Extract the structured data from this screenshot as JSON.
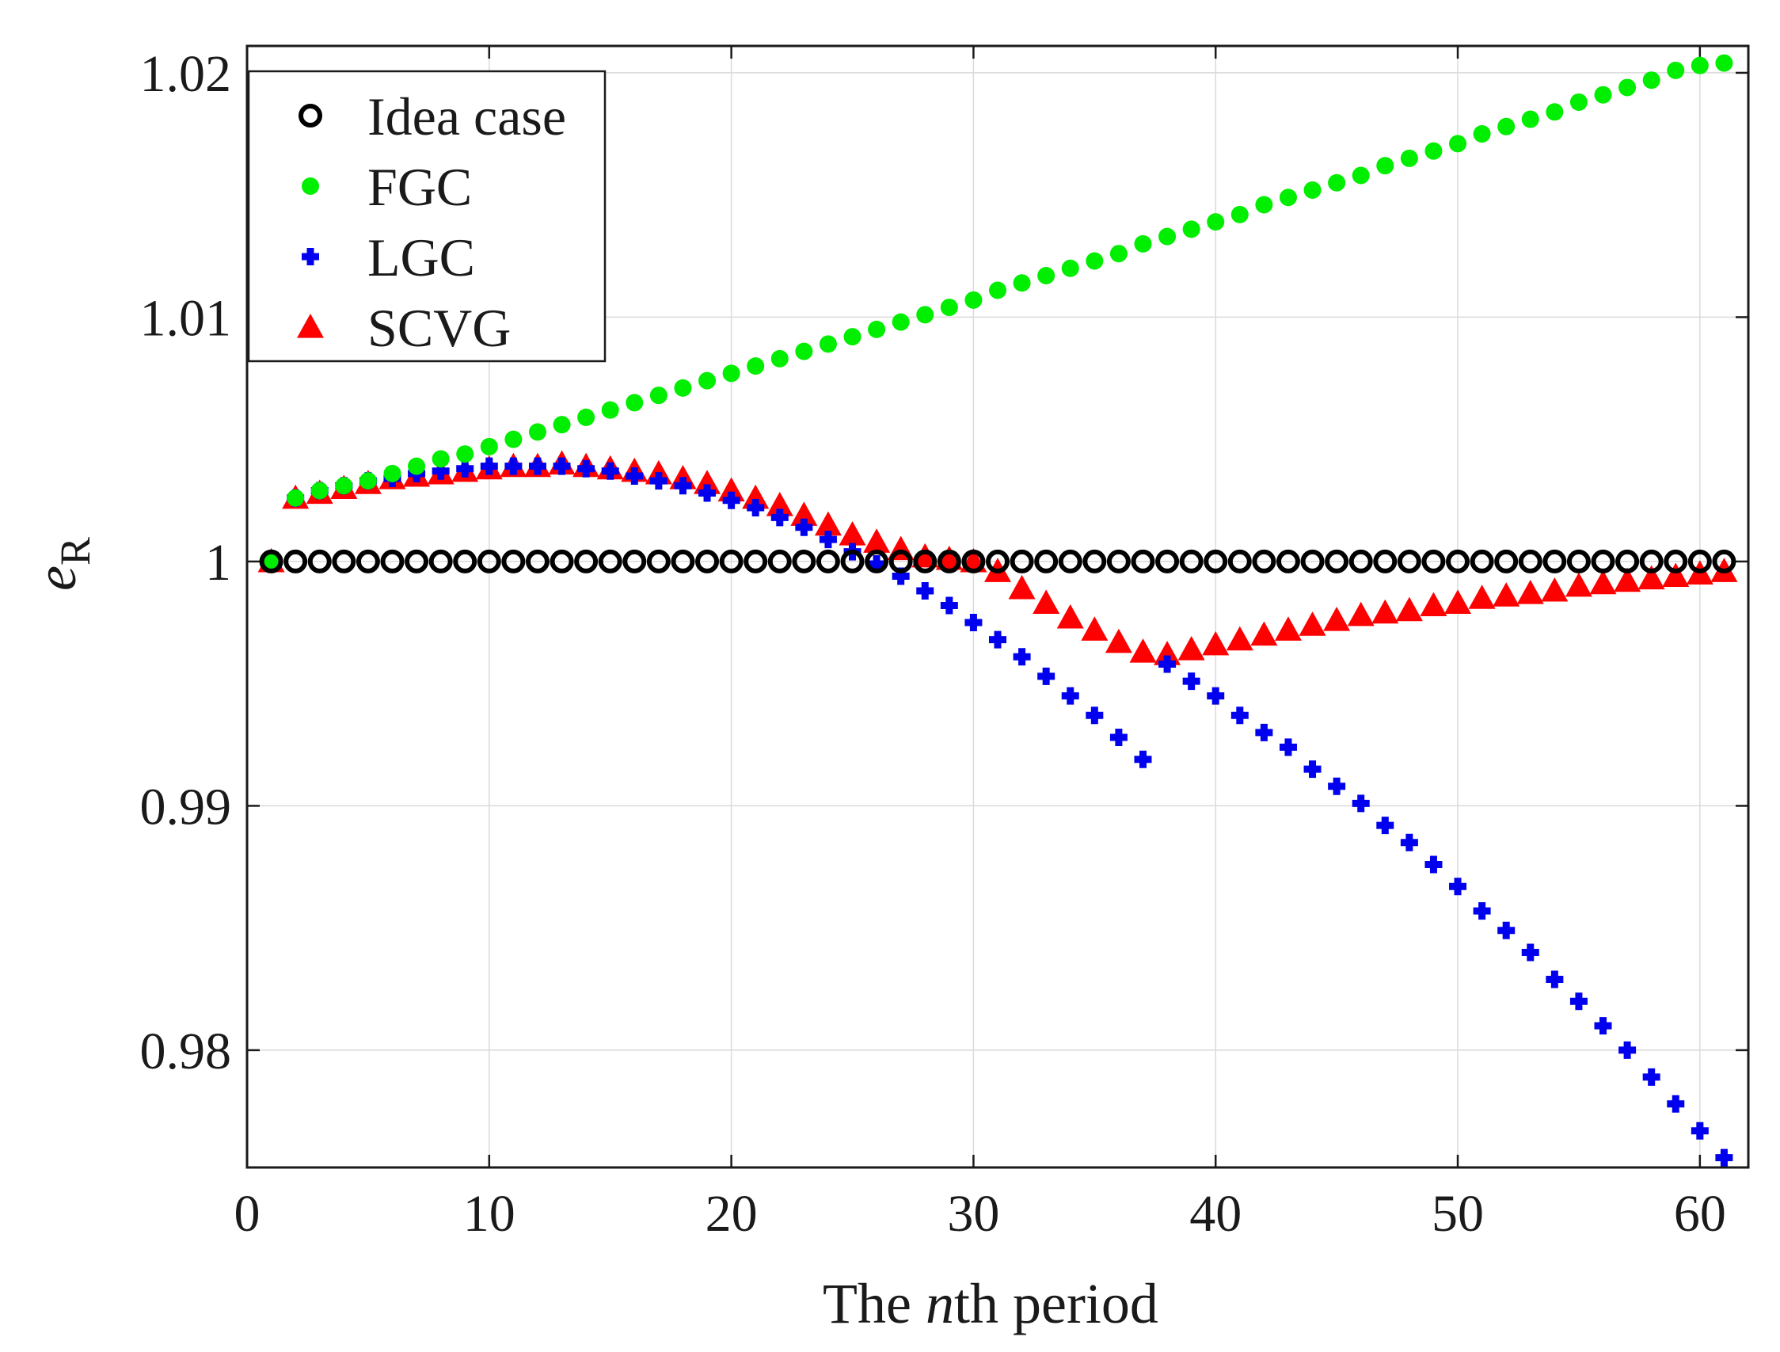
{
  "chart_data": {
    "type": "scatter",
    "xlabel_prefix": "The ",
    "xlabel_var": "n",
    "xlabel_suffix": "th period",
    "ylabel_var": "e",
    "ylabel_sub": "R",
    "xlim": [
      0,
      62
    ],
    "ylim": [
      0.9752,
      1.0211
    ],
    "xticks": [
      0,
      10,
      20,
      30,
      40,
      50,
      60
    ],
    "xtick_labels": [
      "0",
      "10",
      "20",
      "30",
      "40",
      "50",
      "60"
    ],
    "yticks": [
      0.98,
      0.99,
      1.0,
      1.01,
      1.02
    ],
    "ytick_labels": [
      "0.98",
      "0.99",
      "1",
      "1.01",
      "1.02"
    ],
    "grid": true,
    "legend_position": "top-left",
    "x": [
      1,
      2,
      3,
      4,
      5,
      6,
      7,
      8,
      9,
      10,
      11,
      12,
      13,
      14,
      15,
      16,
      17,
      18,
      19,
      20,
      21,
      22,
      23,
      24,
      25,
      26,
      27,
      28,
      29,
      30,
      31,
      32,
      33,
      34,
      35,
      36,
      37,
      38,
      39,
      40,
      41,
      42,
      43,
      44,
      45,
      46,
      47,
      48,
      49,
      50,
      51,
      52,
      53,
      54,
      55,
      56,
      57,
      58,
      59,
      60,
      61
    ],
    "series": [
      {
        "name": "Idea case",
        "marker": "circle-open",
        "color": "#000000",
        "values": [
          1.0,
          1.0,
          1.0,
          1.0,
          1.0,
          1.0,
          1.0,
          1.0,
          1.0,
          1.0,
          1.0,
          1.0,
          1.0,
          1.0,
          1.0,
          1.0,
          1.0,
          1.0,
          1.0,
          1.0,
          1.0,
          1.0,
          1.0,
          1.0,
          1.0,
          1.0,
          1.0,
          1.0,
          1.0,
          1.0,
          1.0,
          1.0,
          1.0,
          1.0,
          1.0,
          1.0,
          1.0,
          1.0,
          1.0,
          1.0,
          1.0,
          1.0,
          1.0,
          1.0,
          1.0,
          1.0,
          1.0,
          1.0,
          1.0,
          1.0,
          1.0,
          1.0,
          1.0,
          1.0,
          1.0,
          1.0,
          1.0,
          1.0,
          1.0,
          1.0,
          1.0
        ]
      },
      {
        "name": "FGC",
        "marker": "circle-filled",
        "color": "#00ee00",
        "values": [
          1.0,
          1.0026,
          1.0029,
          1.0031,
          1.0033,
          1.0036,
          1.0039,
          1.0042,
          1.0044,
          1.0047,
          1.005,
          1.0053,
          1.0056,
          1.0059,
          1.0062,
          1.0065,
          1.0068,
          1.0071,
          1.0074,
          1.0077,
          1.008,
          1.0083,
          1.0086,
          1.0089,
          1.0092,
          1.0095,
          1.0098,
          1.0101,
          1.0104,
          1.0107,
          1.0111,
          1.0114,
          1.0117,
          1.012,
          1.0123,
          1.0126,
          1.013,
          1.0133,
          1.0136,
          1.0139,
          1.0142,
          1.0146,
          1.0149,
          1.0152,
          1.0155,
          1.0158,
          1.0162,
          1.0165,
          1.0168,
          1.0171,
          1.0175,
          1.0178,
          1.0181,
          1.0184,
          1.0188,
          1.0191,
          1.0194,
          1.0197,
          1.0201,
          1.0203,
          1.0204
        ]
      },
      {
        "name": "LGC",
        "marker": "plus-filled",
        "color": "#0000ee",
        "values": [
          1.0,
          1.0026,
          1.0029,
          1.0031,
          1.0033,
          1.0034,
          1.0036,
          1.0037,
          1.0038,
          1.0039,
          1.0039,
          1.0039,
          1.0039,
          1.0038,
          1.0037,
          1.0035,
          1.0033,
          1.0031,
          1.0028,
          1.0025,
          1.0022,
          1.0018,
          1.0014,
          1.0009,
          1.0004,
          0.9999,
          0.9994,
          0.9988,
          0.9982,
          0.9975,
          0.9968,
          0.9961,
          0.9953,
          0.9945,
          0.9937,
          0.9928,
          0.9919,
          0.9958,
          0.9951,
          0.9945,
          0.9937,
          0.993,
          0.9924,
          0.9915,
          0.9908,
          0.9901,
          0.9892,
          0.9885,
          0.9876,
          0.9867,
          0.9857,
          0.9849,
          0.984,
          0.9829,
          0.982,
          0.981,
          0.98,
          0.9789,
          0.9778,
          0.9767,
          0.9756
        ]
      },
      {
        "name": "SCVG",
        "marker": "triangle-filled",
        "color": "#ff0000",
        "values": [
          1.0,
          1.0026,
          1.0028,
          1.003,
          1.0032,
          1.0034,
          1.0035,
          1.0036,
          1.0037,
          1.0038,
          1.0039,
          1.0039,
          1.004,
          1.0039,
          1.0038,
          1.0037,
          1.0036,
          1.0034,
          1.0032,
          1.0029,
          1.0026,
          1.0023,
          1.0019,
          1.0015,
          1.0011,
          1.0008,
          1.0005,
          1.0002,
          1.0001,
          1.0,
          0.9996,
          0.9989,
          0.9983,
          0.9977,
          0.9972,
          0.9967,
          0.9963,
          0.9962,
          0.9964,
          0.9966,
          0.9968,
          0.997,
          0.9972,
          0.9974,
          0.9976,
          0.9978,
          0.9979,
          0.998,
          0.9982,
          0.9983,
          0.9985,
          0.9986,
          0.9987,
          0.9988,
          0.999,
          0.9991,
          0.9992,
          0.9993,
          0.9994,
          0.9995,
          0.9996
        ]
      }
    ]
  }
}
